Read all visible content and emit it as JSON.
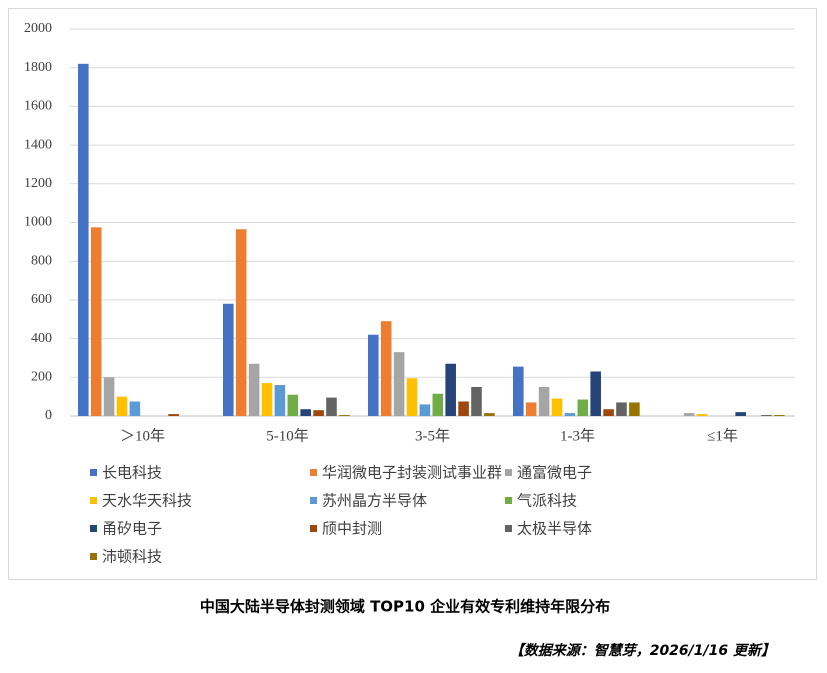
{
  "chart_data": {
    "type": "bar",
    "title": "中国大陆半导体封测领域 TOP10 企业有效专利维持年限分布",
    "source": "【数据来源：智慧芽，2026/1/16 更新】",
    "categories": [
      "＞10年",
      "5-10年",
      "3-5年",
      "1-3年",
      "≤1年"
    ],
    "series": [
      {
        "name": "长电科技",
        "color": "#4472c4",
        "values": [
          1820,
          580,
          420,
          255,
          0
        ]
      },
      {
        "name": "华润微电子封装测试事业群",
        "color": "#ed7d31",
        "values": [
          975,
          965,
          490,
          70,
          0
        ]
      },
      {
        "name": "通富微电子",
        "color": "#a5a5a5",
        "values": [
          200,
          270,
          330,
          150,
          15
        ]
      },
      {
        "name": "天水华天科技",
        "color": "#ffc000",
        "values": [
          100,
          170,
          195,
          90,
          10
        ]
      },
      {
        "name": "苏州晶方半导体",
        "color": "#5b9bd5",
        "values": [
          75,
          160,
          60,
          15,
          0
        ]
      },
      {
        "name": "气派科技",
        "color": "#70ad47",
        "values": [
          0,
          110,
          115,
          85,
          0
        ]
      },
      {
        "name": "甬矽电子",
        "color": "#264478",
        "values": [
          0,
          35,
          270,
          230,
          20
        ]
      },
      {
        "name": "颀中封测",
        "color": "#9e480e",
        "values": [
          10,
          30,
          75,
          35,
          0
        ]
      },
      {
        "name": "太极半导体",
        "color": "#636363",
        "values": [
          0,
          95,
          150,
          70,
          5
        ]
      },
      {
        "name": "沛顿科技",
        "color": "#997300",
        "values": [
          0,
          5,
          15,
          70,
          5
        ]
      }
    ],
    "ylim": [
      0,
      2000
    ],
    "yticks": [
      0,
      200,
      400,
      600,
      800,
      1000,
      1200,
      1400,
      1600,
      1800,
      2000
    ],
    "grid": true
  }
}
